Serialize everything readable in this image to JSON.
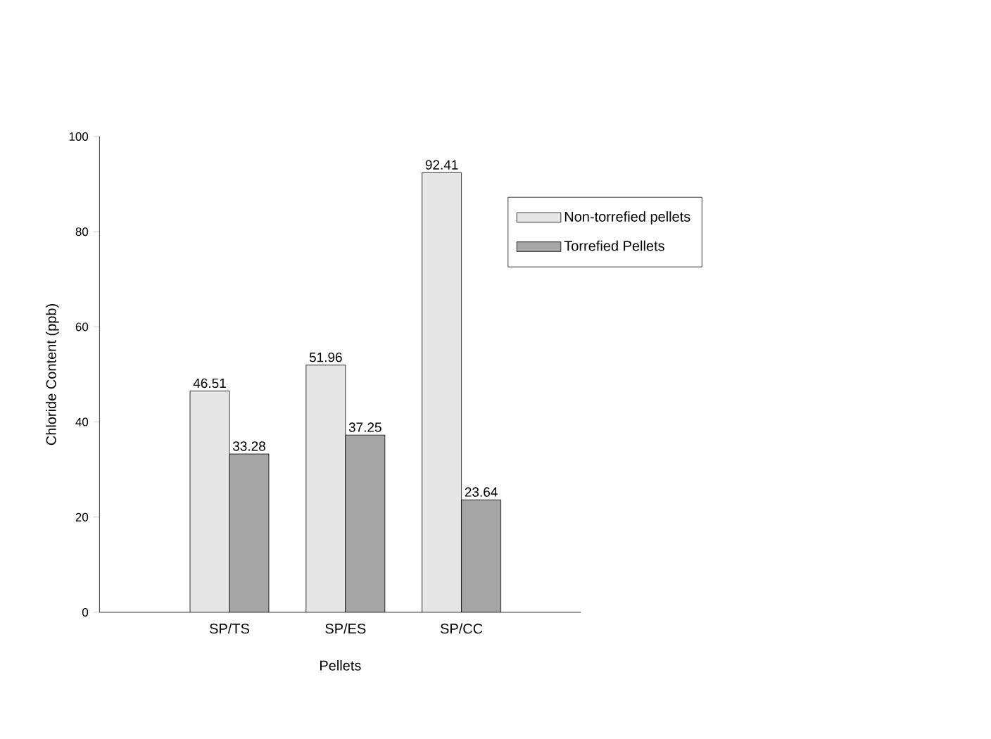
{
  "chart_data": {
    "type": "bar",
    "xlabel": "Pellets",
    "ylabel": "Chloride Content (ppb)",
    "categories": [
      "SP/TS",
      "SP/ES",
      "SP/CC"
    ],
    "series": [
      {
        "name": "Non-torrefied pellets",
        "color": "#e6e6e6",
        "values": [
          46.51,
          51.96,
          92.41
        ]
      },
      {
        "name": "Torrefied Pellets",
        "color": "#a6a6a6",
        "values": [
          33.28,
          37.25,
          23.64
        ]
      }
    ],
    "ylim": [
      0,
      100
    ],
    "yticks": [
      0,
      20,
      40,
      60,
      80,
      100
    ],
    "grid": false,
    "legend": "right",
    "data_labels": true
  }
}
